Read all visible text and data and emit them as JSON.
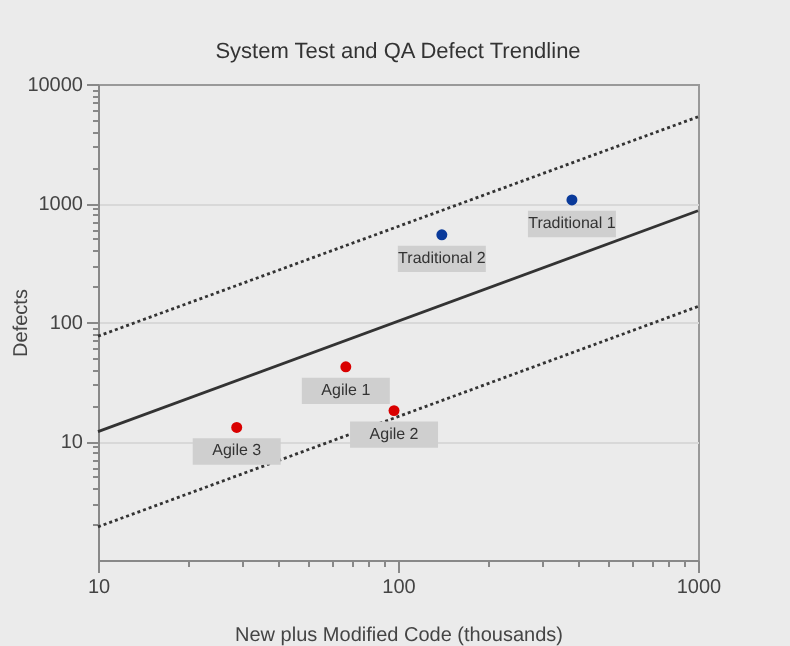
{
  "chart_data": {
    "type": "scatter",
    "title": "System Test and QA Defect Trendline",
    "xlabel": "New plus Modified Code (thousands)",
    "ylabel": "Defects",
    "log": "xy",
    "grid": "y",
    "marker": "circle",
    "xlim": [
      10,
      1000
    ],
    "ylim": [
      1,
      10000
    ],
    "xticks": [
      10,
      {
        "value": 20,
        "label": null
      },
      {
        "value": 30,
        "label": null
      },
      {
        "value": 40,
        "label": null
      },
      {
        "value": 50,
        "label": null
      },
      {
        "value": 60,
        "label": null
      },
      {
        "value": 70,
        "label": null
      },
      {
        "value": 80,
        "label": null
      },
      {
        "value": 90,
        "label": null
      },
      100,
      {
        "value": 200,
        "label": null
      },
      {
        "value": 300,
        "label": null
      },
      {
        "value": 400,
        "label": null
      },
      {
        "value": 500,
        "label": null
      },
      {
        "value": 600,
        "label": null
      },
      {
        "value": 700,
        "label": null
      },
      {
        "value": 800,
        "label": null
      },
      {
        "value": 900,
        "label": null
      },
      1000
    ],
    "yticks": [
      {
        "value": 2,
        "label": null
      },
      {
        "value": 3,
        "label": null
      },
      {
        "value": 4,
        "label": null
      },
      {
        "value": 5,
        "label": null
      },
      {
        "value": 6,
        "label": null
      },
      {
        "value": 7,
        "label": null
      },
      {
        "value": 8,
        "label": null
      },
      {
        "value": 9,
        "label": null
      },
      10,
      {
        "value": 20,
        "label": null
      },
      {
        "value": 30,
        "label": null
      },
      {
        "value": 40,
        "label": null
      },
      {
        "value": 50,
        "label": null
      },
      {
        "value": 60,
        "label": null
      },
      {
        "value": 70,
        "label": null
      },
      {
        "value": 80,
        "label": null
      },
      {
        "value": 90,
        "label": null
      },
      100,
      {
        "value": 200,
        "label": null
      },
      {
        "value": 300,
        "label": null
      },
      {
        "value": 400,
        "label": null
      },
      {
        "value": 500,
        "label": null
      },
      {
        "value": 600,
        "label": null
      },
      {
        "value": 700,
        "label": null
      },
      {
        "value": 800,
        "label": null
      },
      {
        "value": 900,
        "label": null
      },
      1000,
      {
        "value": 2000,
        "label": null
      },
      {
        "value": 3000,
        "label": null
      },
      {
        "value": 4000,
        "label": null
      },
      {
        "value": 5000,
        "label": null
      },
      {
        "value": 6000,
        "label": null
      },
      {
        "value": 7000,
        "label": null
      },
      {
        "value": 8000,
        "label": null
      },
      {
        "value": 9000,
        "label": null
      },
      10000
    ],
    "series": [
      {
        "type": "line",
        "line_style": "dotted",
        "color": "#333333",
        "marker": "none",
        "x": [
          10,
          1000
        ],
        "values": [
          76,
          5300
        ]
      },
      {
        "type": "line",
        "line_style": "solid",
        "color": "#333333",
        "marker": "none",
        "x": [
          10,
          1000
        ],
        "values": [
          12,
          860
        ]
      },
      {
        "type": "line",
        "line_style": "dotted",
        "color": "#333333",
        "marker": "none",
        "x": [
          10,
          1000
        ],
        "values": [
          1.9,
          135
        ]
      },
      {
        "color": "#0a3a9a",
        "x": [
          380,
          140
        ],
        "values": [
          1060,
          540
        ]
      },
      {
        "color": "#d90000",
        "x": [
          67,
          97,
          29
        ],
        "values": [
          42,
          18,
          13
        ]
      }
    ],
    "annotations": [
      {
        "text": "Traditional 1",
        "x": 380,
        "y": 1060
      },
      {
        "text": "Traditional 2",
        "x": 140,
        "y": 540
      },
      {
        "text": "Agile 1",
        "x": 67,
        "y": 42
      },
      {
        "text": "Agile 2",
        "x": 97,
        "y": 18
      },
      {
        "text": "Agile 3",
        "x": 29,
        "y": 13
      }
    ]
  }
}
